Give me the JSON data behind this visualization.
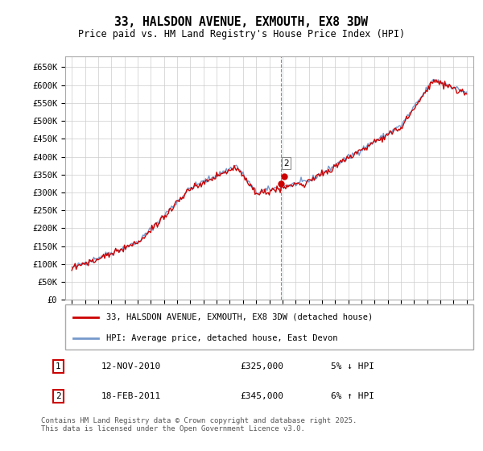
{
  "title": "33, HALSDON AVENUE, EXMOUTH, EX8 3DW",
  "subtitle": "Price paid vs. HM Land Registry's House Price Index (HPI)",
  "ylabel_ticks": [
    "£0",
    "£50K",
    "£100K",
    "£150K",
    "£200K",
    "£250K",
    "£300K",
    "£350K",
    "£400K",
    "£450K",
    "£500K",
    "£550K",
    "£600K",
    "£650K"
  ],
  "ytick_values": [
    0,
    50000,
    100000,
    150000,
    200000,
    250000,
    300000,
    350000,
    400000,
    450000,
    500000,
    550000,
    600000,
    650000
  ],
  "xlim_start": 1994.5,
  "xlim_end": 2025.5,
  "ylim_min": 0,
  "ylim_max": 680000,
  "transaction1_date": 2010.87,
  "transaction1_price": 325000,
  "transaction2_date": 2011.13,
  "transaction2_price": 345000,
  "legend_line1": "33, HALSDON AVENUE, EXMOUTH, EX8 3DW (detached house)",
  "legend_line2": "HPI: Average price, detached house, East Devon",
  "table_row1": [
    "1",
    "12-NOV-2010",
    "£325,000",
    "5% ↓ HPI"
  ],
  "table_row2": [
    "2",
    "18-FEB-2011",
    "£345,000",
    "6% ↑ HPI"
  ],
  "footnote": "Contains HM Land Registry data © Crown copyright and database right 2025.\nThis data is licensed under the Open Government Licence v3.0.",
  "hpi_color": "#7799cc",
  "price_color": "#cc0000",
  "vline_color": "#cc0000",
  "background_color": "#ffffff",
  "grid_color": "#cccccc"
}
